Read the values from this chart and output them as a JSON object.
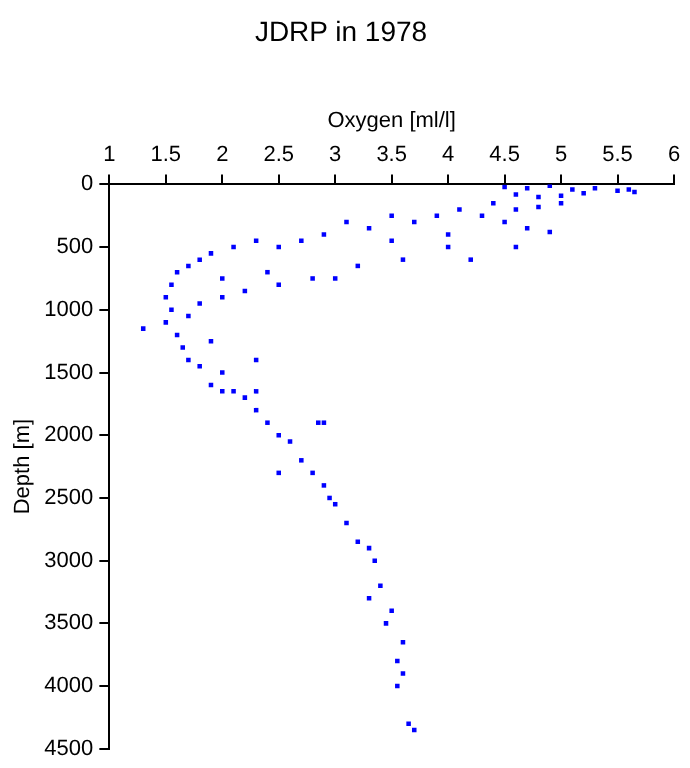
{
  "chart_data": {
    "type": "scatter",
    "title": "JDRP in 1978",
    "xlabel": "Oxygen [ml/l]",
    "ylabel": "Depth [m]",
    "xlim": [
      1,
      6
    ],
    "xticks": [
      1,
      1.5,
      2,
      2.5,
      3,
      3.5,
      4,
      4.5,
      5,
      5.5,
      6
    ],
    "ylim": [
      4500,
      0
    ],
    "yticks": [
      0,
      500,
      1000,
      1500,
      2000,
      2500,
      3000,
      3500,
      4000,
      4500
    ],
    "grid": false,
    "marker": "square",
    "legend": false,
    "series": [
      {
        "color": "#0000ff",
        "x": [
          4.5,
          4.7,
          4.9,
          5.1,
          5.3,
          5.5,
          5.6,
          5.65,
          4.6,
          4.8,
          5.0,
          5.2,
          4.4,
          4.6,
          4.8,
          5.0,
          4.5,
          4.3,
          4.7,
          4.9,
          4.1,
          3.9,
          3.7,
          3.5,
          3.3,
          3.1,
          2.9,
          2.7,
          2.5,
          2.3,
          2.1,
          1.9,
          1.8,
          1.7,
          1.6,
          1.55,
          1.5,
          1.55,
          1.3,
          1.5,
          1.6,
          1.65,
          1.7,
          1.8,
          2.0,
          1.9,
          2.1,
          2.2,
          2.3,
          2.4,
          2.5,
          2.6,
          2.7,
          2.8,
          2.9,
          2.95,
          3.0,
          3.1,
          3.2,
          3.3,
          3.35,
          3.4,
          3.5,
          3.45,
          3.55,
          3.6,
          3.55,
          3.65,
          3.7,
          4.0,
          3.6,
          3.2,
          2.8,
          2.5,
          2.2,
          2.0,
          3.0,
          4.2,
          4.6,
          4.0,
          3.5,
          2.4,
          2.0,
          1.8,
          1.7,
          2.3,
          2.0,
          2.9,
          2.5,
          3.6,
          3.3,
          1.9,
          2.3,
          2.85
        ],
        "values": [
          20,
          30,
          10,
          40,
          30,
          50,
          40,
          60,
          80,
          100,
          90,
          70,
          150,
          200,
          180,
          150,
          300,
          250,
          350,
          380,
          200,
          250,
          300,
          250,
          350,
          300,
          400,
          450,
          500,
          450,
          500,
          550,
          600,
          650,
          700,
          800,
          900,
          1000,
          1150,
          1100,
          1200,
          1300,
          1400,
          1450,
          1500,
          1600,
          1650,
          1700,
          1800,
          1900,
          2000,
          2050,
          2200,
          2300,
          2400,
          2500,
          2550,
          2700,
          2850,
          2900,
          3000,
          3200,
          3400,
          3500,
          3800,
          3900,
          4000,
          4300,
          4350,
          500,
          600,
          650,
          750,
          800,
          850,
          900,
          750,
          600,
          500,
          400,
          450,
          700,
          750,
          950,
          1050,
          1400,
          1650,
          1900,
          2300,
          3650,
          3300,
          1250,
          1650,
          1900
        ]
      }
    ]
  }
}
